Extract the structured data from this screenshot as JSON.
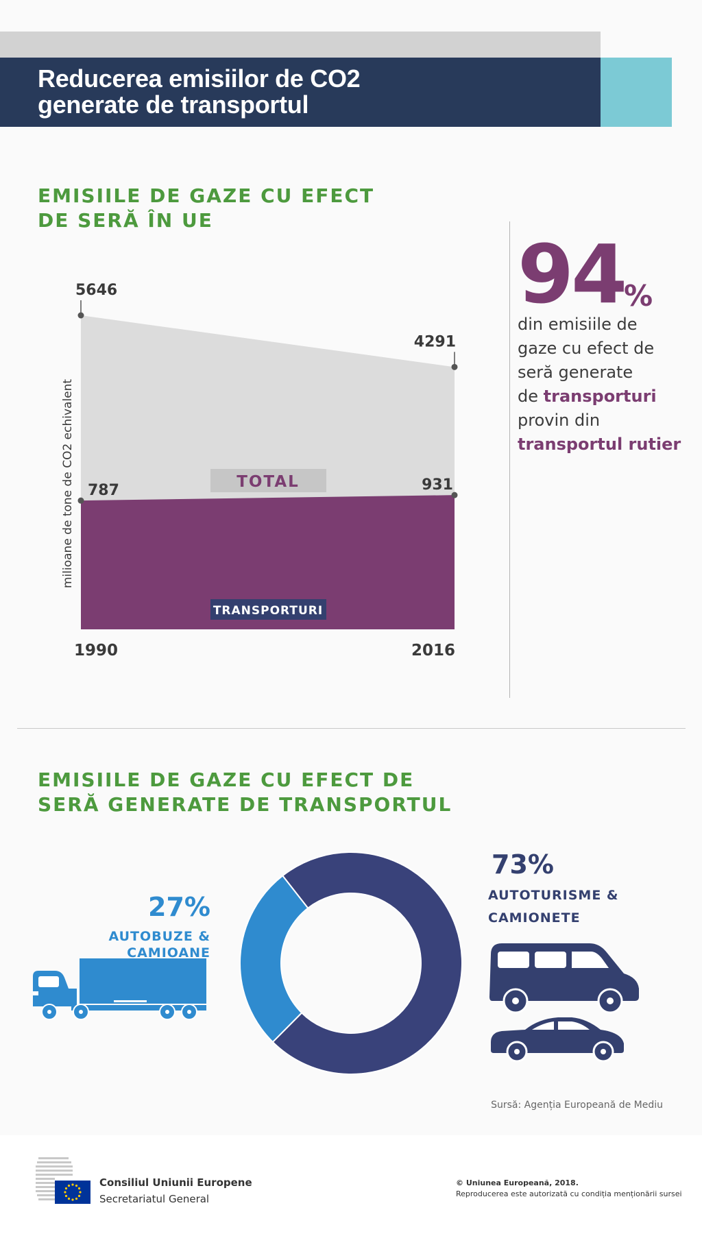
{
  "header": {
    "title_line1": "Reducerea emisiilor de CO2",
    "title_line2": "generate de transportul"
  },
  "section1": {
    "title_line1": "EMISIILE DE GAZE CU EFECT",
    "title_line2": "DE SERĂ ÎN UE"
  },
  "stat": {
    "big_number": "94",
    "percent_sign": "%",
    "line1": "din emisiile de",
    "line2": "gaze cu efect de",
    "line3": "seră generate",
    "line4_prefix": "de ",
    "line4_highlight": "transporturi",
    "line5": "provin din",
    "line6_highlight": "transportul rutier"
  },
  "section2": {
    "title_line1": "EMISIILE DE GAZE CU EFECT DE",
    "title_line2": "SERĂ GENERATE DE TRANSPORTUL"
  },
  "donut_labels": {
    "right_pct": "73%",
    "right_label_line1": "AUTOTURISME &",
    "right_label_line2": "CAMIONETE",
    "left_pct": "27%",
    "left_label": "AUTOBUZE & CAMIOANE"
  },
  "source": "Sursă: Agenția Europeană de Mediu",
  "footer": {
    "council_name": "Consiliul Uniunii Europene",
    "council_sub": "Secretariatul General",
    "copyright": "© Uniunea Europeană, 2018.",
    "reproduction": "Reproducerea este autorizată cu condiția menționării sursei"
  },
  "colors": {
    "navy": "#283a5a",
    "teal": "#7ccad5",
    "green": "#4d9a3e",
    "purple": "#7b3d71",
    "dark_blue": "#39427a",
    "light_blue": "#2f8bcf",
    "gray_area": "#dcdcdc"
  },
  "chart_data": [
    {
      "type": "area",
      "ylabel": "milioane de tone de CO2 echivalent",
      "x": [
        "1990",
        "2016"
      ],
      "series": [
        {
          "name": "TOTAL",
          "values": [
            5646,
            4291
          ]
        },
        {
          "name": "TRANSPORTURI",
          "values": [
            787,
            931
          ]
        }
      ]
    },
    {
      "type": "pie",
      "categories": [
        "AUTOTURISME & CAMIONETE",
        "AUTOBUZE & CAMIOANE"
      ],
      "values": [
        73,
        27
      ]
    }
  ]
}
